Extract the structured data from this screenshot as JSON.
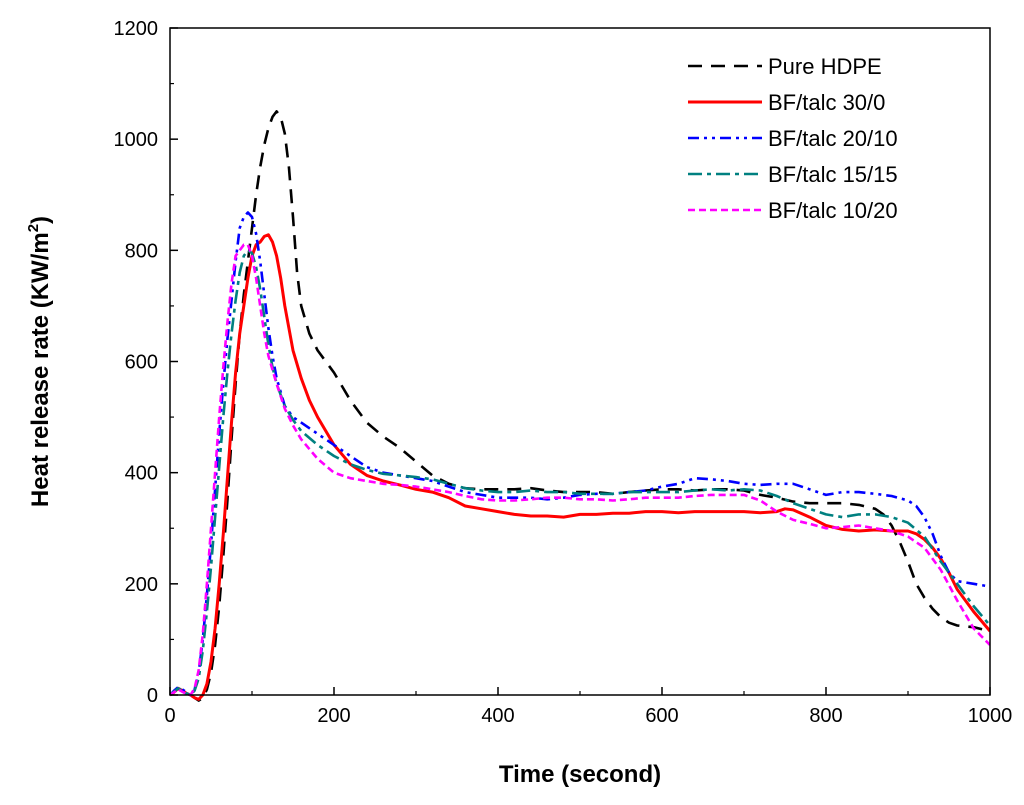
{
  "chart_data": {
    "type": "line",
    "title": "",
    "xlabel": "Time (second)",
    "ylabel": "Heat release rate (KW/m",
    "ylabel_superscript": "2",
    "ylabel_suffix": ")",
    "xlim": [
      0,
      1000
    ],
    "ylim": [
      0,
      1200
    ],
    "xticks": [
      0,
      200,
      400,
      600,
      800,
      1000
    ],
    "yticks": [
      0,
      200,
      400,
      600,
      800,
      1000,
      1200
    ],
    "grid": false,
    "legend_position": "top-right",
    "series": [
      {
        "name": "Pure HDPE",
        "color": "#000000",
        "dash": "dash",
        "x": [
          0,
          5,
          10,
          15,
          20,
          25,
          30,
          35,
          40,
          45,
          50,
          55,
          60,
          65,
          70,
          75,
          80,
          85,
          90,
          95,
          100,
          105,
          110,
          115,
          120,
          125,
          130,
          135,
          140,
          145,
          150,
          155,
          160,
          170,
          180,
          200,
          220,
          240,
          260,
          280,
          300,
          320,
          340,
          360,
          380,
          400,
          420,
          440,
          460,
          480,
          500,
          520,
          540,
          560,
          580,
          600,
          620,
          640,
          660,
          680,
          700,
          720,
          740,
          760,
          780,
          800,
          820,
          840,
          860,
          870,
          880,
          890,
          900,
          910,
          920,
          930,
          940,
          950,
          960,
          980,
          1000
        ],
        "y": [
          0,
          5,
          12,
          8,
          3,
          0,
          -5,
          -10,
          -5,
          10,
          40,
          90,
          160,
          250,
          350,
          460,
          560,
          650,
          720,
          780,
          840,
          900,
          950,
          990,
          1020,
          1040,
          1050,
          1040,
          1010,
          950,
          860,
          760,
          700,
          650,
          620,
          580,
          530,
          490,
          465,
          445,
          420,
          395,
          380,
          372,
          370,
          370,
          370,
          372,
          368,
          365,
          365,
          365,
          362,
          365,
          368,
          370,
          370,
          368,
          370,
          370,
          368,
          360,
          355,
          348,
          345,
          345,
          345,
          342,
          335,
          325,
          305,
          275,
          240,
          200,
          175,
          155,
          140,
          130,
          125,
          122,
          115
        ]
      },
      {
        "name": "BF/talc 30/0",
        "color": "#ff0000",
        "dash": "solid",
        "x": [
          0,
          5,
          10,
          15,
          20,
          25,
          30,
          35,
          40,
          45,
          50,
          55,
          60,
          65,
          70,
          75,
          80,
          85,
          90,
          95,
          100,
          105,
          110,
          115,
          120,
          125,
          130,
          135,
          140,
          145,
          150,
          160,
          170,
          180,
          200,
          220,
          240,
          260,
          280,
          300,
          320,
          340,
          360,
          380,
          400,
          420,
          440,
          460,
          480,
          500,
          520,
          540,
          560,
          580,
          600,
          620,
          640,
          660,
          680,
          700,
          720,
          740,
          750,
          760,
          780,
          800,
          820,
          840,
          860,
          880,
          900,
          910,
          920,
          930,
          940,
          950,
          960,
          980,
          1000
        ],
        "y": [
          0,
          5,
          12,
          8,
          3,
          0,
          -5,
          -8,
          0,
          20,
          60,
          120,
          200,
          290,
          390,
          490,
          580,
          650,
          700,
          750,
          790,
          810,
          815,
          825,
          828,
          815,
          790,
          750,
          700,
          660,
          620,
          570,
          530,
          500,
          450,
          415,
          395,
          385,
          378,
          370,
          365,
          355,
          340,
          335,
          330,
          325,
          322,
          322,
          320,
          325,
          325,
          327,
          327,
          330,
          330,
          328,
          330,
          330,
          330,
          330,
          328,
          330,
          335,
          333,
          320,
          305,
          298,
          295,
          297,
          295,
          295,
          290,
          280,
          265,
          245,
          220,
          190,
          150,
          115
        ]
      },
      {
        "name": "BF/talc 20/10",
        "color": "#0000ff",
        "dash": "dashdotdot",
        "x": [
          0,
          5,
          10,
          15,
          20,
          25,
          30,
          35,
          40,
          45,
          50,
          55,
          60,
          65,
          70,
          75,
          80,
          85,
          90,
          95,
          100,
          105,
          110,
          115,
          120,
          125,
          130,
          140,
          150,
          160,
          180,
          200,
          220,
          240,
          260,
          280,
          300,
          320,
          340,
          360,
          380,
          400,
          420,
          440,
          460,
          480,
          500,
          520,
          540,
          560,
          580,
          600,
          620,
          640,
          660,
          680,
          700,
          720,
          740,
          760,
          780,
          800,
          820,
          840,
          860,
          880,
          900,
          910,
          920,
          930,
          940,
          950,
          960,
          980,
          1000
        ],
        "y": [
          0,
          8,
          14,
          10,
          5,
          0,
          10,
          40,
          100,
          180,
          270,
          370,
          470,
          560,
          640,
          710,
          780,
          840,
          860,
          868,
          860,
          830,
          780,
          720,
          660,
          610,
          570,
          520,
          500,
          490,
          470,
          450,
          430,
          410,
          400,
          395,
          390,
          385,
          375,
          365,
          360,
          355,
          355,
          355,
          352,
          355,
          360,
          362,
          362,
          365,
          368,
          375,
          380,
          390,
          388,
          385,
          380,
          378,
          380,
          380,
          370,
          360,
          365,
          365,
          362,
          358,
          350,
          340,
          320,
          290,
          250,
          220,
          205,
          200,
          195
        ]
      },
      {
        "name": "BF/talc 15/15",
        "color": "#008080",
        "dash": "dashdot",
        "x": [
          0,
          5,
          10,
          15,
          20,
          25,
          30,
          35,
          40,
          45,
          50,
          55,
          60,
          65,
          70,
          75,
          80,
          85,
          90,
          95,
          100,
          105,
          110,
          115,
          120,
          125,
          130,
          140,
          150,
          160,
          180,
          200,
          220,
          240,
          260,
          280,
          300,
          320,
          340,
          360,
          380,
          400,
          420,
          440,
          460,
          480,
          500,
          520,
          540,
          560,
          580,
          600,
          620,
          640,
          660,
          680,
          700,
          720,
          740,
          760,
          780,
          800,
          820,
          840,
          860,
          880,
          900,
          920,
          940,
          960,
          980,
          1000
        ],
        "y": [
          0,
          6,
          12,
          8,
          3,
          0,
          8,
          30,
          80,
          150,
          230,
          320,
          410,
          500,
          580,
          650,
          710,
          760,
          790,
          800,
          795,
          770,
          730,
          680,
          630,
          590,
          560,
          520,
          495,
          475,
          450,
          430,
          415,
          405,
          398,
          395,
          392,
          388,
          380,
          372,
          368,
          365,
          365,
          368,
          365,
          365,
          362,
          362,
          362,
          365,
          365,
          365,
          365,
          368,
          370,
          368,
          370,
          368,
          358,
          345,
          335,
          325,
          320,
          325,
          325,
          320,
          310,
          285,
          240,
          200,
          160,
          125
        ]
      },
      {
        "name": "BF/talc 10/20",
        "color": "#ff00ff",
        "dash": "shortdash",
        "x": [
          0,
          5,
          10,
          15,
          20,
          25,
          30,
          35,
          40,
          45,
          50,
          55,
          60,
          65,
          70,
          75,
          80,
          85,
          90,
          95,
          100,
          105,
          110,
          115,
          120,
          130,
          140,
          150,
          160,
          180,
          200,
          220,
          240,
          260,
          280,
          300,
          320,
          340,
          360,
          380,
          400,
          420,
          440,
          460,
          480,
          500,
          520,
          540,
          560,
          580,
          600,
          620,
          640,
          660,
          680,
          700,
          720,
          740,
          760,
          780,
          800,
          820,
          840,
          860,
          880,
          900,
          920,
          940,
          960,
          980,
          1000
        ],
        "y": [
          0,
          5,
          10,
          6,
          2,
          0,
          12,
          45,
          110,
          200,
          300,
          400,
          500,
          590,
          670,
          740,
          790,
          800,
          810,
          810,
          790,
          750,
          700,
          650,
          610,
          560,
          515,
          485,
          460,
          425,
          400,
          390,
          385,
          380,
          378,
          375,
          370,
          365,
          358,
          352,
          350,
          350,
          352,
          355,
          355,
          352,
          352,
          350,
          352,
          355,
          355,
          355,
          358,
          360,
          360,
          360,
          350,
          330,
          315,
          308,
          300,
          302,
          305,
          300,
          295,
          285,
          265,
          225,
          170,
          120,
          90
        ]
      }
    ]
  }
}
